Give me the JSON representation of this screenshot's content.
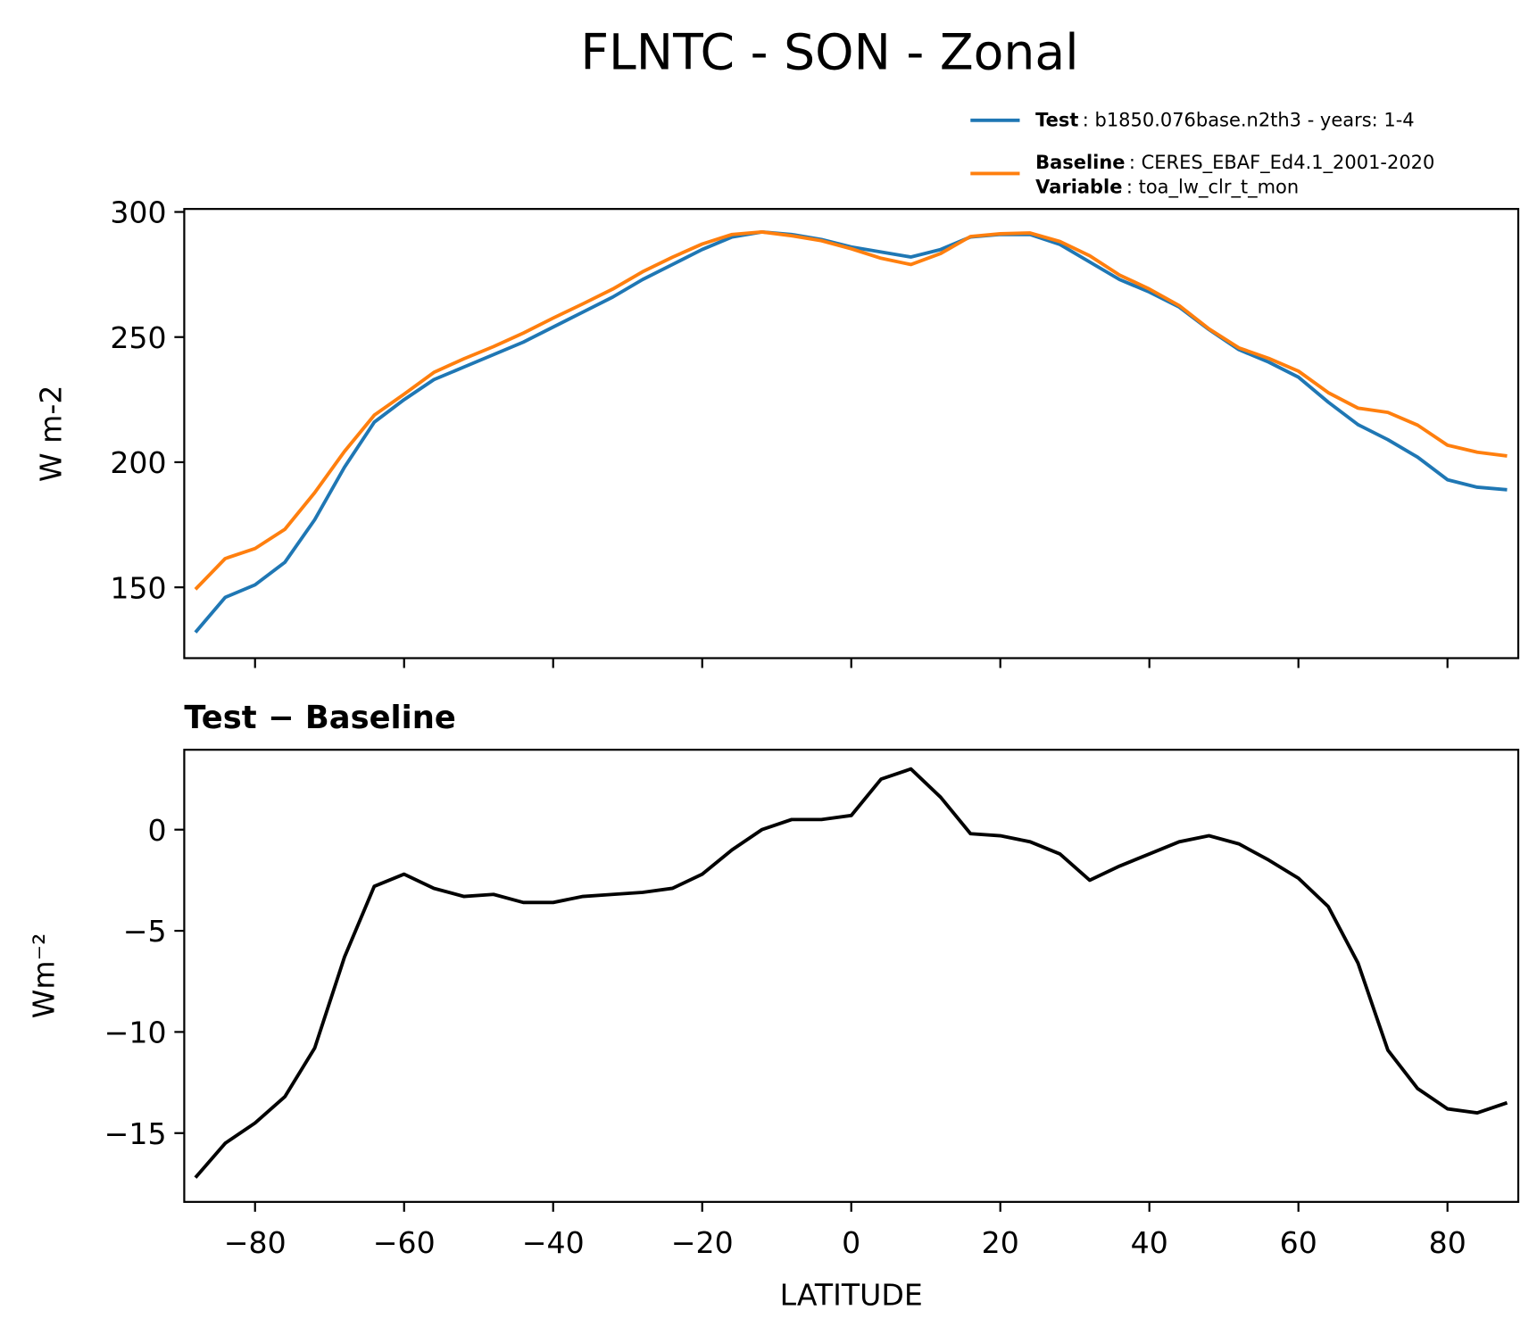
{
  "chart_data": [
    {
      "type": "line",
      "title": "FLNTC - SON - Zonal",
      "ylabel": "W m-2",
      "x": [
        -88,
        -84,
        -80,
        -76,
        -72,
        -68,
        -64,
        -60,
        -56,
        -52,
        -48,
        -44,
        -40,
        -36,
        -32,
        -28,
        -24,
        -20,
        -16,
        -12,
        -8,
        -4,
        0,
        4,
        8,
        12,
        16,
        20,
        24,
        28,
        32,
        36,
        40,
        44,
        48,
        52,
        56,
        60,
        64,
        68,
        72,
        76,
        80,
        84,
        88
      ],
      "series": [
        {
          "name": "Test",
          "description": ": b1850.076base.n2th3 - years: 1-4",
          "color": "#1f77b4",
          "values": [
            132,
            146,
            151,
            160,
            177,
            198,
            216,
            225,
            233,
            238,
            243,
            248,
            254,
            260,
            266,
            273,
            279,
            285,
            290,
            292,
            291,
            289,
            286,
            284,
            282,
            285,
            290,
            291,
            291,
            287,
            280,
            273,
            268,
            262,
            253,
            245,
            240,
            234,
            224,
            215,
            209,
            202,
            193,
            190,
            189
          ]
        },
        {
          "name": "Baseline",
          "description": ": CERES_EBAF_Ed4.1_2001-2020",
          "color": "#ff7f0e",
          "values": [
            149.2,
            161.5,
            165.5,
            173.2,
            187.8,
            204.3,
            218.8,
            227.2,
            235.9,
            241.3,
            246.2,
            251.6,
            257.6,
            263.3,
            269.2,
            276.1,
            281.9,
            287.2,
            291,
            292,
            290.5,
            288.5,
            285.3,
            281.5,
            279,
            283.4,
            290.2,
            291.3,
            291.6,
            288.2,
            282.5,
            274.8,
            269.2,
            262.6,
            253.3,
            245.7,
            241.5,
            236.4,
            227.8,
            221.6,
            219.9,
            214.8,
            206.8,
            204,
            202.5
          ]
        }
      ],
      "variable_label": "Variable",
      "variable": ": toa_lw_clr_t_mon",
      "xlim": [
        -89.5,
        89.5
      ],
      "xticks": [
        -80,
        -60,
        -40,
        -20,
        0,
        20,
        40,
        60,
        80
      ],
      "ylim": [
        121.7,
        301.2
      ],
      "yticks": [
        150,
        200,
        250,
        300
      ]
    },
    {
      "type": "line",
      "title": "Test − Baseline",
      "xlabel": "LATITUDE",
      "ylabel": "Wm⁻²",
      "x": [
        -88,
        -84,
        -80,
        -76,
        -72,
        -68,
        -64,
        -60,
        -56,
        -52,
        -48,
        -44,
        -40,
        -36,
        -32,
        -28,
        -24,
        -20,
        -16,
        -12,
        -8,
        -4,
        0,
        4,
        8,
        12,
        16,
        20,
        24,
        28,
        32,
        36,
        40,
        44,
        48,
        52,
        56,
        60,
        64,
        68,
        72,
        76,
        80,
        84,
        88
      ],
      "series": [
        {
          "color": "#000000",
          "values": [
            -17.2,
            -15.5,
            -14.5,
            -13.2,
            -10.8,
            -6.3,
            -2.8,
            -2.2,
            -2.9,
            -3.3,
            -3.2,
            -3.6,
            -3.6,
            -3.3,
            -3.2,
            -3.1,
            -2.9,
            -2.2,
            -1.0,
            0.0,
            0.5,
            0.5,
            0.7,
            2.5,
            3.0,
            1.6,
            -0.2,
            -0.3,
            -0.6,
            -1.2,
            -2.5,
            -1.8,
            -1.2,
            -0.6,
            -0.3,
            -0.7,
            -1.5,
            -2.4,
            -3.8,
            -6.6,
            -10.9,
            -12.8,
            -13.8,
            -14.0,
            -13.5
          ]
        }
      ],
      "xlim": [
        -89.5,
        89.5
      ],
      "xticks": [
        {
          "value": -80,
          "label": "−80"
        },
        {
          "value": -60,
          "label": "−60"
        },
        {
          "value": -40,
          "label": "−40"
        },
        {
          "value": -20,
          "label": "−20"
        },
        0,
        20,
        40,
        60,
        80
      ],
      "ylim": [
        -18.4,
        3.95
      ],
      "yticks": [
        {
          "value": -15,
          "label": "−15"
        },
        {
          "value": -10,
          "label": "−10"
        },
        {
          "value": -5,
          "label": "−5"
        },
        0
      ]
    }
  ]
}
